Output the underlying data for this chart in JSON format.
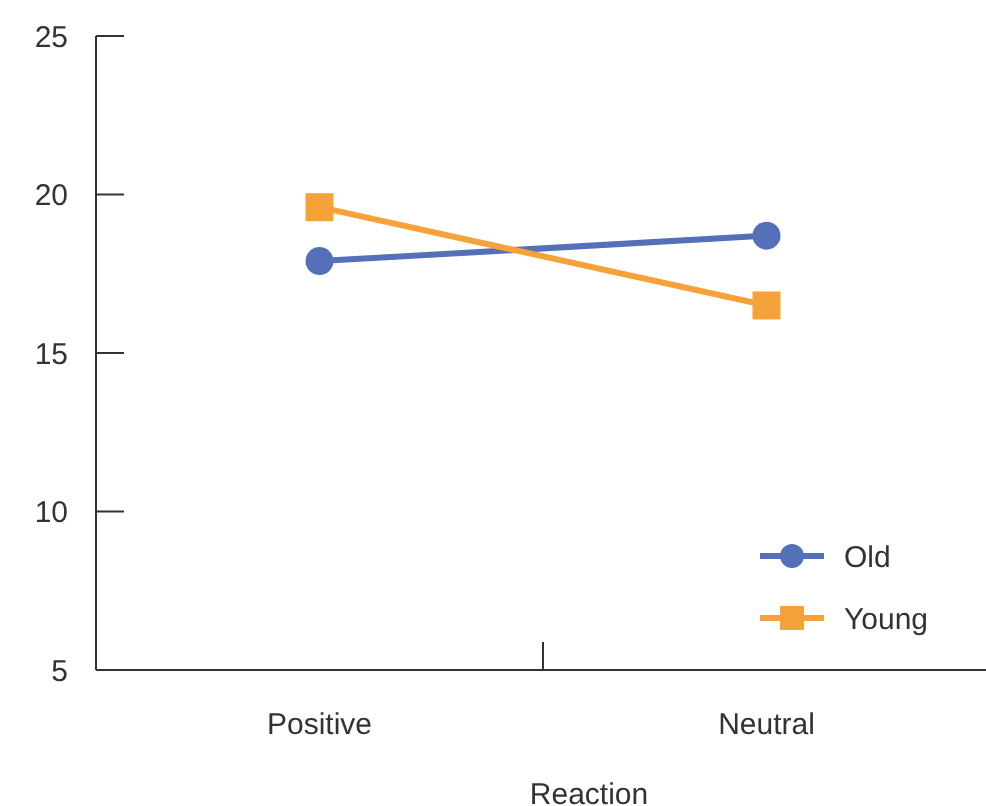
{
  "chart_data": {
    "type": "line",
    "xlabel": "Reaction",
    "categories": [
      "Positive",
      "Neutral"
    ],
    "series": [
      {
        "name": "Old",
        "color": "#5470b8",
        "values": [
          17.9,
          18.7
        ],
        "marker": "circle"
      },
      {
        "name": "Young",
        "color": "#f5a23a",
        "values": [
          19.6,
          16.5
        ],
        "marker": "square"
      }
    ],
    "ylim": [
      5,
      25
    ],
    "yticks": [
      5,
      10,
      15,
      20,
      25
    ],
    "grid": false,
    "legend": "bottom right",
    "line_style": "solid"
  }
}
